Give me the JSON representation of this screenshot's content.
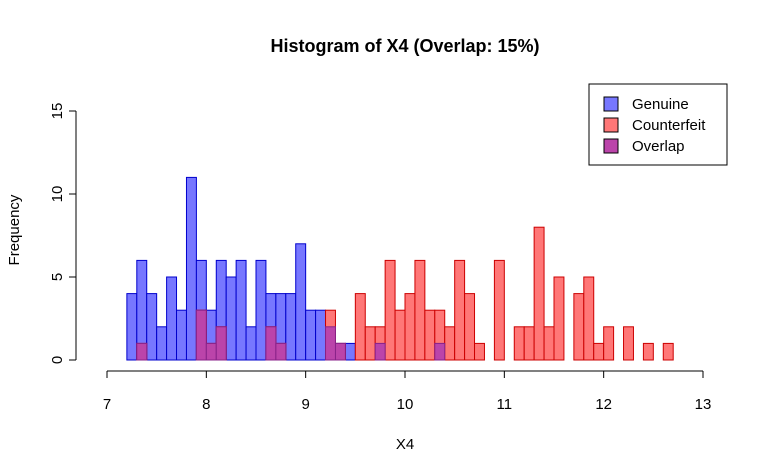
{
  "chart_data": {
    "type": "bar",
    "title": "Histogram of X4 (Overlap: 15%)",
    "xlabel": "X4",
    "ylabel": "Frequency",
    "xlim": [
      7,
      13
    ],
    "ylim": [
      0,
      15
    ],
    "xticks": [
      "7",
      "8",
      "9",
      "10",
      "11",
      "12",
      "13"
    ],
    "yticks": [
      "0",
      "5",
      "10",
      "15"
    ],
    "bin_width": 0.1,
    "legend": {
      "position": "top-right",
      "entries": [
        {
          "label": "Genuine",
          "color": "#7777ff"
        },
        {
          "label": "Counterfeit",
          "color": "#ff7777"
        },
        {
          "label": "Overlap",
          "color": "#bb44aa"
        }
      ]
    },
    "series": [
      {
        "name": "Genuine",
        "color": "#7777ff",
        "border": "#0000cc",
        "bins": [
          {
            "x": 7.2,
            "count": 4
          },
          {
            "x": 7.3,
            "count": 6
          },
          {
            "x": 7.4,
            "count": 4
          },
          {
            "x": 7.5,
            "count": 2
          },
          {
            "x": 7.6,
            "count": 5
          },
          {
            "x": 7.7,
            "count": 3
          },
          {
            "x": 7.8,
            "count": 11
          },
          {
            "x": 7.9,
            "count": 6
          },
          {
            "x": 8.0,
            "count": 3
          },
          {
            "x": 8.1,
            "count": 6
          },
          {
            "x": 8.2,
            "count": 5
          },
          {
            "x": 8.3,
            "count": 6
          },
          {
            "x": 8.4,
            "count": 2
          },
          {
            "x": 8.5,
            "count": 6
          },
          {
            "x": 8.6,
            "count": 4
          },
          {
            "x": 8.7,
            "count": 4
          },
          {
            "x": 8.8,
            "count": 4
          },
          {
            "x": 8.9,
            "count": 7
          },
          {
            "x": 9.0,
            "count": 3
          },
          {
            "x": 9.1,
            "count": 3
          },
          {
            "x": 9.2,
            "count": 2
          },
          {
            "x": 9.3,
            "count": 1
          },
          {
            "x": 9.4,
            "count": 1
          },
          {
            "x": 9.7,
            "count": 1
          },
          {
            "x": 10.3,
            "count": 1
          }
        ]
      },
      {
        "name": "Counterfeit",
        "color": "#ff7777",
        "border": "#cc0000",
        "bins": [
          {
            "x": 7.3,
            "count": 1
          },
          {
            "x": 7.9,
            "count": 3
          },
          {
            "x": 8.0,
            "count": 1
          },
          {
            "x": 8.1,
            "count": 2
          },
          {
            "x": 8.6,
            "count": 2
          },
          {
            "x": 8.7,
            "count": 1
          },
          {
            "x": 9.2,
            "count": 3
          },
          {
            "x": 9.3,
            "count": 1
          },
          {
            "x": 9.5,
            "count": 4
          },
          {
            "x": 9.6,
            "count": 2
          },
          {
            "x": 9.7,
            "count": 2
          },
          {
            "x": 9.8,
            "count": 6
          },
          {
            "x": 9.9,
            "count": 3
          },
          {
            "x": 10.0,
            "count": 4
          },
          {
            "x": 10.1,
            "count": 6
          },
          {
            "x": 10.2,
            "count": 3
          },
          {
            "x": 10.3,
            "count": 3
          },
          {
            "x": 10.4,
            "count": 2
          },
          {
            "x": 10.5,
            "count": 6
          },
          {
            "x": 10.6,
            "count": 4
          },
          {
            "x": 10.7,
            "count": 1
          },
          {
            "x": 10.9,
            "count": 6
          },
          {
            "x": 11.1,
            "count": 2
          },
          {
            "x": 11.2,
            "count": 2
          },
          {
            "x": 11.3,
            "count": 8
          },
          {
            "x": 11.4,
            "count": 2
          },
          {
            "x": 11.5,
            "count": 5
          },
          {
            "x": 11.7,
            "count": 4
          },
          {
            "x": 11.8,
            "count": 5
          },
          {
            "x": 11.9,
            "count": 1
          },
          {
            "x": 12.0,
            "count": 2
          },
          {
            "x": 12.2,
            "count": 2
          },
          {
            "x": 12.4,
            "count": 1
          },
          {
            "x": 12.6,
            "count": 1
          }
        ]
      },
      {
        "name": "Overlap",
        "color": "#bb44aa",
        "border": "#882288",
        "bins": [
          {
            "x": 7.3,
            "count": 1
          },
          {
            "x": 7.9,
            "count": 3
          },
          {
            "x": 8.0,
            "count": 1
          },
          {
            "x": 8.1,
            "count": 2
          },
          {
            "x": 8.6,
            "count": 2
          },
          {
            "x": 8.7,
            "count": 1
          },
          {
            "x": 9.2,
            "count": 2
          },
          {
            "x": 9.3,
            "count": 1
          },
          {
            "x": 9.7,
            "count": 1
          },
          {
            "x": 10.3,
            "count": 1
          }
        ]
      }
    ]
  }
}
